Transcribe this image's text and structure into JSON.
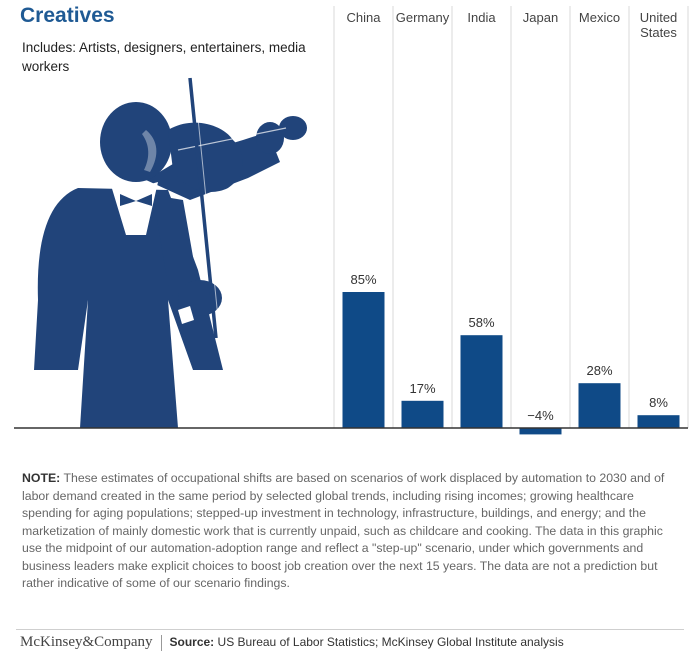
{
  "header": {
    "title": "Creatives",
    "subtitle": "Includes: Artists, designers, entertainers, media workers"
  },
  "chart_data": {
    "type": "bar",
    "categories": [
      "China",
      "Germany",
      "India",
      "Japan",
      "Mexico",
      "United States"
    ],
    "values": [
      85,
      17,
      58,
      -4,
      28,
      8
    ],
    "value_labels": [
      "85%",
      "17%",
      "58%",
      "−4%",
      "28%",
      "8%"
    ],
    "title": "",
    "xlabel": "",
    "ylabel": "",
    "grid": false,
    "category_label_position": "top",
    "colors": {
      "bar": "#0f4a87",
      "divider": "#d8d8d8",
      "baseline": "#333333"
    }
  },
  "illustration": {
    "icon": "violinist-icon",
    "color": "#21447a"
  },
  "note": {
    "label": "NOTE:",
    "text": "These estimates of occupational shifts are based on scenarios of work displaced by automation to 2030 and of labor demand created in the same period by selected global trends, including rising incomes; growing healthcare spending for aging populations; stepped-up investment in technology, infrastructure, buildings, and energy; and the marketization of mainly domestic work that is currently unpaid, such as childcare and cooking. The data in this graphic use the midpoint of our automation-adoption range and reflect a \"step-up\" scenario, under which governments and business leaders make explicit choices to boost job creation over the next 15 years. The data are not a prediction but rather indicative of some of our scenario findings."
  },
  "footer": {
    "brand": "McKinsey&Company",
    "source_label": "Source:",
    "source_text": "US Bureau of Labor Statistics; McKinsey Global Institute analysis"
  }
}
